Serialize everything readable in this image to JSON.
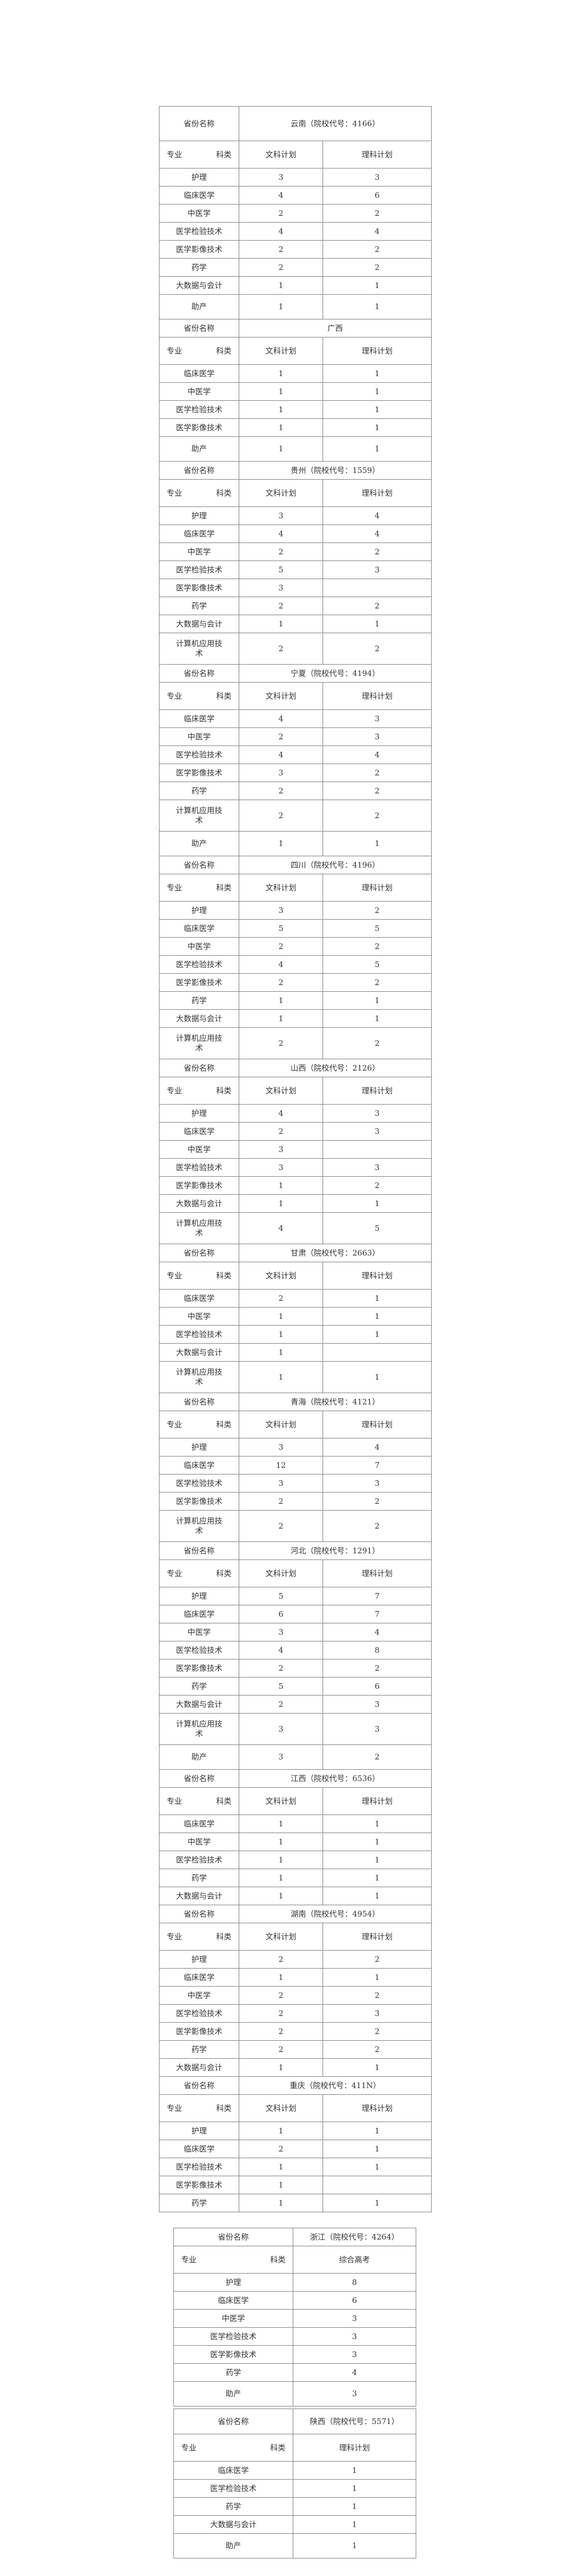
{
  "labels": {
    "province_label": "省份名称",
    "major_label": "专业",
    "category_label": "科类",
    "wen_label": "文科计划",
    "li_label": "理科计划"
  },
  "provinces": [
    {
      "name": "云南（院校代号：4166）",
      "rows": [
        {
          "major": "护理",
          "wen": "3",
          "li": "3"
        },
        {
          "major": "临床医学",
          "wen": "4",
          "li": "6"
        },
        {
          "major": "中医学",
          "wen": "2",
          "li": "2"
        },
        {
          "major": "医学检验技术",
          "wen": "4",
          "li": "4"
        },
        {
          "major": "医学影像技术",
          "wen": "2",
          "li": "2"
        },
        {
          "major": "药学",
          "wen": "2",
          "li": "2"
        },
        {
          "major": "大数据与会计",
          "wen": "1",
          "li": "1"
        },
        {
          "major": "助产",
          "wen": "1",
          "li": "1"
        }
      ]
    },
    {
      "name": "广西",
      "rows": [
        {
          "major": "临床医学",
          "wen": "1",
          "li": "1"
        },
        {
          "major": "中医学",
          "wen": "1",
          "li": "1"
        },
        {
          "major": "医学检验技术",
          "wen": "1",
          "li": "1"
        },
        {
          "major": "医学影像技术",
          "wen": "1",
          "li": "1"
        },
        {
          "major": "助产",
          "wen": "1",
          "li": "1"
        }
      ]
    },
    {
      "name": "贵州（院校代号：1559）",
      "rows": [
        {
          "major": "护理",
          "wen": "3",
          "li": "4"
        },
        {
          "major": "临床医学",
          "wen": "4",
          "li": "4"
        },
        {
          "major": "中医学",
          "wen": "2",
          "li": "2"
        },
        {
          "major": "医学检验技术",
          "wen": "5",
          "li": "3"
        },
        {
          "major": "医学影像技术",
          "wen": "3",
          "li": ""
        },
        {
          "major": "药学",
          "wen": "2",
          "li": "2"
        },
        {
          "major": "大数据与会计",
          "wen": "1",
          "li": "1"
        },
        {
          "major": "计算机应用技术",
          "wen": "2",
          "li": "2"
        }
      ]
    },
    {
      "name": "宁夏（院校代号：4194）",
      "rows": [
        {
          "major": "临床医学",
          "wen": "4",
          "li": "3"
        },
        {
          "major": "中医学",
          "wen": "2",
          "li": "3"
        },
        {
          "major": "医学检验技术",
          "wen": "4",
          "li": "4"
        },
        {
          "major": "医学影像技术",
          "wen": "3",
          "li": "2"
        },
        {
          "major": "药学",
          "wen": "2",
          "li": "2"
        },
        {
          "major": "计算机应用技术",
          "wen": "2",
          "li": "2"
        },
        {
          "major": "助产",
          "wen": "1",
          "li": "1"
        }
      ]
    },
    {
      "name": "四川（院校代号：4196）",
      "rows": [
        {
          "major": "护理",
          "wen": "3",
          "li": "2"
        },
        {
          "major": "临床医学",
          "wen": "5",
          "li": "5"
        },
        {
          "major": "中医学",
          "wen": "2",
          "li": "2"
        },
        {
          "major": "医学检验技术",
          "wen": "4",
          "li": "5"
        },
        {
          "major": "医学影像技术",
          "wen": "2",
          "li": "2"
        },
        {
          "major": "药学",
          "wen": "1",
          "li": "1"
        },
        {
          "major": "大数据与会计",
          "wen": "1",
          "li": "1"
        },
        {
          "major": "计算机应用技术",
          "wen": "2",
          "li": "2"
        }
      ]
    },
    {
      "name": "山西（院校代号：2126）",
      "rows": [
        {
          "major": "护理",
          "wen": "4",
          "li": "3"
        },
        {
          "major": "临床医学",
          "wen": "2",
          "li": "3"
        },
        {
          "major": "中医学",
          "wen": "3",
          "li": ""
        },
        {
          "major": "医学检验技术",
          "wen": "3",
          "li": "3"
        },
        {
          "major": "医学影像技术",
          "wen": "1",
          "li": "2"
        },
        {
          "major": "大数据与会计",
          "wen": "1",
          "li": "1"
        },
        {
          "major": "计算机应用技术",
          "wen": "4",
          "li": "5"
        }
      ]
    },
    {
      "name": "甘肃（院校代号：2663）",
      "rows": [
        {
          "major": "临床医学",
          "wen": "2",
          "li": "1"
        },
        {
          "major": "中医学",
          "wen": "1",
          "li": "1"
        },
        {
          "major": "医学检验技术",
          "wen": "1",
          "li": "1"
        },
        {
          "major": "大数据与会计",
          "wen": "1",
          "li": ""
        },
        {
          "major": "计算机应用技术",
          "wen": "1",
          "li": "1"
        }
      ]
    },
    {
      "name": "青海（院校代号：4121）",
      "rows": [
        {
          "major": "护理",
          "wen": "3",
          "li": "4"
        },
        {
          "major": "临床医学",
          "wen": "12",
          "li": "7"
        },
        {
          "major": "医学检验技术",
          "wen": "3",
          "li": "3"
        },
        {
          "major": "医学影像技术",
          "wen": "2",
          "li": "2"
        },
        {
          "major": "计算机应用技术",
          "wen": "2",
          "li": "2"
        }
      ]
    },
    {
      "name": "河北（院校代号：1291）",
      "rows": [
        {
          "major": "护理",
          "wen": "5",
          "li": "7"
        },
        {
          "major": "临床医学",
          "wen": "6",
          "li": "7"
        },
        {
          "major": "中医学",
          "wen": "3",
          "li": "4"
        },
        {
          "major": "医学检验技术",
          "wen": "4",
          "li": "8"
        },
        {
          "major": "医学影像技术",
          "wen": "2",
          "li": "2"
        },
        {
          "major": "药学",
          "wen": "5",
          "li": "6"
        },
        {
          "major": "大数据与会计",
          "wen": "2",
          "li": "3"
        },
        {
          "major": "计算机应用技术",
          "wen": "3",
          "li": "3"
        },
        {
          "major": "助产",
          "wen": "3",
          "li": "2"
        }
      ]
    },
    {
      "name": "江西（院校代号：6536）",
      "rows": [
        {
          "major": "临床医学",
          "wen": "1",
          "li": "1"
        },
        {
          "major": "中医学",
          "wen": "1",
          "li": "1"
        },
        {
          "major": "医学检验技术",
          "wen": "1",
          "li": "1"
        },
        {
          "major": "药学",
          "wen": "1",
          "li": "1"
        },
        {
          "major": "大数据与会计",
          "wen": "1",
          "li": "1"
        }
      ]
    },
    {
      "name": "湖南（院校代号：4954）",
      "rows": [
        {
          "major": "护理",
          "wen": "2",
          "li": "2"
        },
        {
          "major": "临床医学",
          "wen": "1",
          "li": "1"
        },
        {
          "major": "中医学",
          "wen": "2",
          "li": "2"
        },
        {
          "major": "医学检验技术",
          "wen": "2",
          "li": "3"
        },
        {
          "major": "医学影像技术",
          "wen": "2",
          "li": "2"
        },
        {
          "major": "药学",
          "wen": "2",
          "li": "2"
        },
        {
          "major": "大数据与会计",
          "wen": "1",
          "li": "1"
        }
      ]
    },
    {
      "name": "重庆（院校代号：411N）",
      "rows": [
        {
          "major": "护理",
          "wen": "1",
          "li": "1"
        },
        {
          "major": "临床医学",
          "wen": "2",
          "li": "1"
        },
        {
          "major": "医学检验技术",
          "wen": "1",
          "li": "1"
        },
        {
          "major": "医学影像技术",
          "wen": "1",
          "li": ""
        },
        {
          "major": "药学",
          "wen": "1",
          "li": "1"
        }
      ]
    }
  ],
  "single_column_provinces": [
    {
      "name": "浙江（院校代号：4264）",
      "column": "综合高考",
      "rows": [
        {
          "major": "护理",
          "value": "8"
        },
        {
          "major": "临床医学",
          "value": "6"
        },
        {
          "major": "中医学",
          "value": "3"
        },
        {
          "major": "医学检验技术",
          "value": "3"
        },
        {
          "major": "医学影像技术",
          "value": "3"
        },
        {
          "major": "药学",
          "value": "4"
        },
        {
          "major": "助产",
          "value": "3"
        }
      ]
    },
    {
      "name": "陕西（院校代号：5571）",
      "column": "理科计划",
      "rows": [
        {
          "major": "临床医学",
          "value": "1"
        },
        {
          "major": "医学检验技术",
          "value": "1"
        },
        {
          "major": "药学",
          "value": "1"
        },
        {
          "major": "大数据与会计",
          "value": "1"
        },
        {
          "major": "助产",
          "value": "1"
        }
      ]
    }
  ]
}
